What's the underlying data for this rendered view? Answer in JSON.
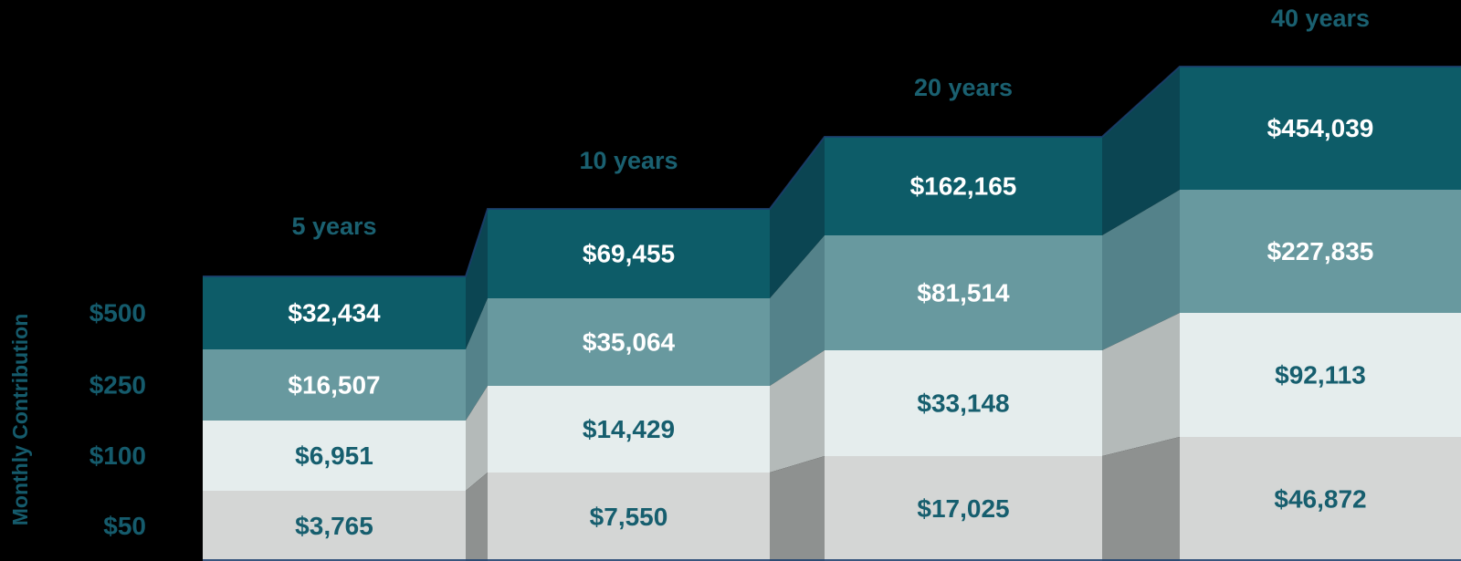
{
  "chart_data": {
    "type": "bar",
    "variant": "stepped-stacked-ribbon",
    "title": "",
    "ylabel": "Monthly Contribution",
    "categories": [
      "5 years",
      "10 years",
      "20 years",
      "40 years"
    ],
    "rows": [
      {
        "label": "$500",
        "values": [
          32434,
          69455,
          162165,
          454039
        ],
        "display": [
          "$32,434",
          "$69,455",
          "$162,165",
          "$454,039"
        ]
      },
      {
        "label": "$250",
        "values": [
          16507,
          35064,
          81514,
          227835
        ],
        "display": [
          "$16,507",
          "$35,064",
          "$81,514",
          "$227,835"
        ]
      },
      {
        "label": "$100",
        "values": [
          6951,
          14429,
          33148,
          92113
        ],
        "display": [
          "$6,951",
          "$14,429",
          "$33,148",
          "$92,113"
        ]
      },
      {
        "label": "$50",
        "values": [
          3765,
          7550,
          17025,
          46872
        ],
        "display": [
          "$3,765",
          "$7,550",
          "$17,025",
          "$46,872"
        ]
      }
    ],
    "legend_position": "none",
    "grid": false,
    "colors": {
      "band_colors": [
        "#0d5c68",
        "#68999f",
        "#e5eded",
        "#d4d6d5"
      ],
      "connector_colors": [
        "#0b4552",
        "#54828a",
        "#b4bab9",
        "#8e9190"
      ],
      "value_text_colors": [
        "#ffffff",
        "#ffffff",
        "#165e6e",
        "#165e6e"
      ],
      "header_text_color": "#1a6070",
      "row_label_color": "#155b6c",
      "axis_label_color": "#155b6c",
      "edge_line_color": "#1c3f6e",
      "background": "#000000"
    }
  }
}
